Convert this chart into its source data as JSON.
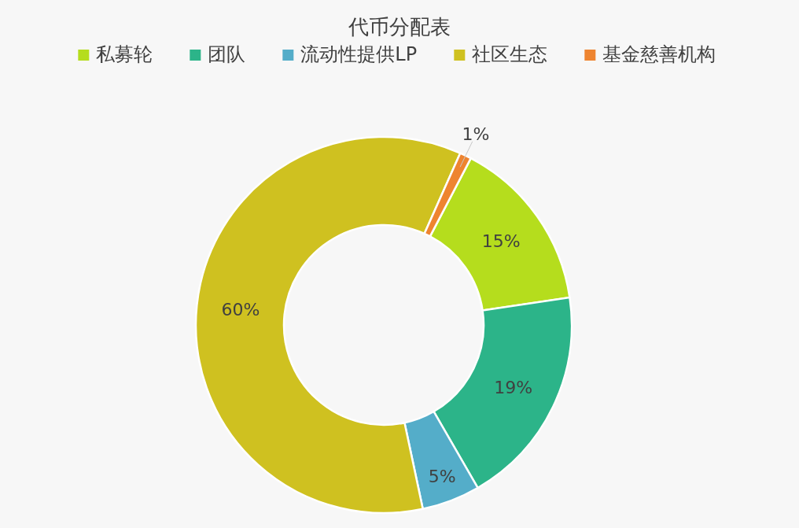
{
  "chart_data": {
    "type": "donut",
    "title": "代币分配表",
    "categories": [
      "私募轮",
      "团队",
      "流动性提供LP",
      "社区生态",
      "基金慈善机构"
    ],
    "values": [
      15,
      19,
      5,
      60,
      1
    ],
    "colors": [
      "#b5dd1d",
      "#2cb489",
      "#54adc9",
      "#cfc120",
      "#ee8430"
    ],
    "value_labels": [
      "15%",
      "19%",
      "5%",
      "60%",
      "1%"
    ],
    "legend": "top"
  }
}
